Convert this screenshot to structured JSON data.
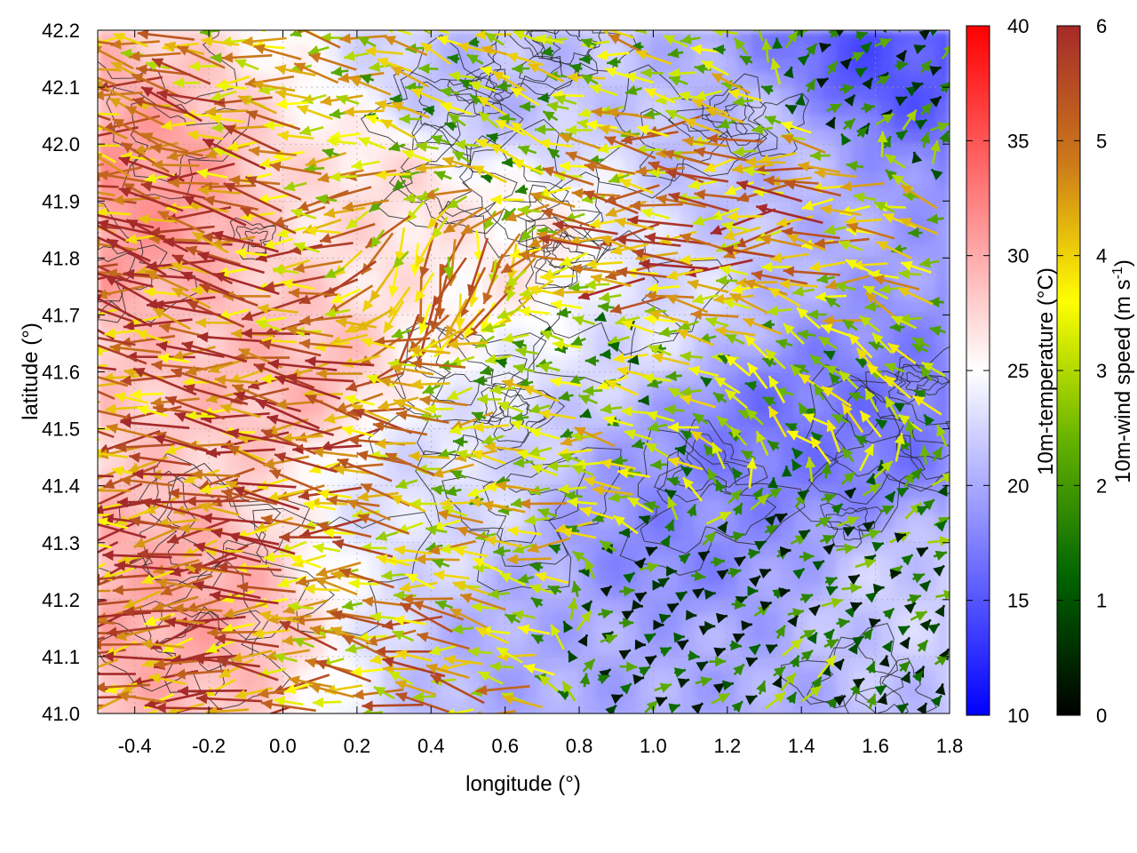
{
  "chart_data": {
    "type": "heatmap",
    "subtype": "temperature field with wind vector overlay and terrain contours",
    "xlabel": "longitude (°)",
    "ylabel": "latitude (°)",
    "xlim": [
      -0.5,
      1.8
    ],
    "ylim": [
      41.0,
      42.2
    ],
    "x_ticks": [
      "-0.4",
      "-0.2",
      "0.0",
      "0.2",
      "0.4",
      "0.6",
      "0.8",
      "1.0",
      "1.2",
      "1.4",
      "1.6",
      "1.8"
    ],
    "y_ticks": [
      "41.0",
      "41.1",
      "41.2",
      "41.3",
      "41.4",
      "41.5",
      "41.6",
      "41.7",
      "41.8",
      "41.9",
      "42.0",
      "42.1",
      "42.2"
    ],
    "grid": true,
    "temperature_colorbar": {
      "label": "10m-temperature (°C)",
      "range": [
        10,
        40
      ],
      "ticks": [
        "10",
        "15",
        "20",
        "25",
        "30",
        "35",
        "40"
      ],
      "colors": [
        "#0000ff",
        "#ffffff",
        "#ff0000"
      ]
    },
    "wind_colorbar": {
      "label_main": "10m-wind speed (m s",
      "label_sup": "-1",
      "label_end": ")",
      "range": [
        0,
        6
      ],
      "ticks": [
        "0",
        "1",
        "2",
        "3",
        "4",
        "5",
        "6"
      ],
      "colors": [
        "#000000",
        "#006400",
        "#66b300",
        "#ffff00",
        "#cc7a1a",
        "#a52a2a"
      ]
    },
    "temperature_regions": [
      {
        "lon": -0.4,
        "lat": 41.9,
        "temp": 31
      },
      {
        "lon": -0.3,
        "lat": 41.2,
        "temp": 30
      },
      {
        "lon": 0.0,
        "lat": 41.6,
        "temp": 29
      },
      {
        "lon": 0.3,
        "lat": 41.9,
        "temp": 27
      },
      {
        "lon": 0.4,
        "lat": 41.4,
        "temp": 23
      },
      {
        "lon": 0.55,
        "lat": 42.1,
        "temp": 21
      },
      {
        "lon": 0.65,
        "lat": 41.8,
        "temp": 26
      },
      {
        "lon": 0.75,
        "lat": 41.1,
        "temp": 20
      },
      {
        "lon": 1.05,
        "lat": 41.3,
        "temp": 18
      },
      {
        "lon": 1.1,
        "lat": 41.05,
        "temp": 20
      },
      {
        "lon": 1.3,
        "lat": 41.5,
        "temp": 17
      },
      {
        "lon": 1.55,
        "lat": 41.5,
        "temp": 17
      },
      {
        "lon": 1.6,
        "lat": 42.15,
        "temp": 15
      },
      {
        "lon": 1.3,
        "lat": 42.0,
        "temp": 21
      },
      {
        "lon": 1.0,
        "lat": 41.7,
        "temp": 23
      },
      {
        "lon": 1.7,
        "lat": 41.2,
        "temp": 22
      }
    ],
    "wind_regions": [
      {
        "lon": -0.3,
        "lat": 41.8,
        "u": -2.3,
        "v": 0.9,
        "speed": 6
      },
      {
        "lon": -0.3,
        "lat": 41.2,
        "u": -2.9,
        "v": 0.2,
        "speed": 6
      },
      {
        "lon": 0.1,
        "lat": 41.5,
        "u": -2.6,
        "v": 0.7,
        "speed": 6
      },
      {
        "lon": 0.5,
        "lat": 41.8,
        "u": -0.4,
        "v": -0.9,
        "speed": 5
      },
      {
        "lon": 0.6,
        "lat": 42.0,
        "u": -0.8,
        "v": 0.5,
        "speed": 3.5
      },
      {
        "lon": 1.0,
        "lat": 41.8,
        "u": -2.4,
        "v": 0.5,
        "speed": 5.5
      },
      {
        "lon": 1.3,
        "lat": 41.9,
        "u": -2.5,
        "v": 0.4,
        "speed": 5.5
      },
      {
        "lon": 1.6,
        "lat": 42.1,
        "u": 0.8,
        "v": 0.3,
        "speed": 2
      },
      {
        "lon": 0.85,
        "lat": 41.65,
        "u": -1.0,
        "v": 0.2,
        "speed": 3
      },
      {
        "lon": 1.4,
        "lat": 41.55,
        "u": -0.5,
        "v": 0.6,
        "speed": 3.5
      },
      {
        "lon": 0.7,
        "lat": 41.4,
        "u": -1.4,
        "v": 0.3,
        "speed": 4
      },
      {
        "lon": 1.1,
        "lat": 41.15,
        "u": 1.2,
        "v": 0.0,
        "speed": 1.2
      },
      {
        "lon": 1.5,
        "lat": 41.25,
        "u": 1.5,
        "v": 0.3,
        "speed": 2
      },
      {
        "lon": 1.4,
        "lat": 41.05,
        "u": 0.8,
        "v": 0.7,
        "speed": 2.5
      },
      {
        "lon": 1.7,
        "lat": 41.05,
        "u": 0.5,
        "v": 0.5,
        "speed": 1.5
      },
      {
        "lon": 0.4,
        "lat": 41.05,
        "u": -1.5,
        "v": 0.5,
        "speed": 5
      }
    ]
  }
}
